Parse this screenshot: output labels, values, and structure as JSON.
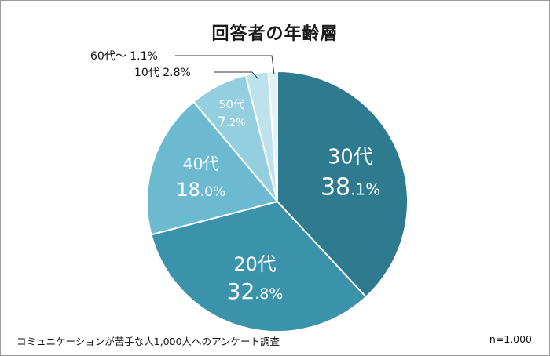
{
  "chart_data": {
    "type": "pie",
    "title": "回答者の年齢層",
    "start": "12 o'clock, clockwise",
    "slices": [
      {
        "label": "30代",
        "value": 38.1,
        "int": "38",
        "dec": ".1%",
        "color": "#2e7a8e"
      },
      {
        "label": "20代",
        "value": 32.8,
        "int": "32",
        "dec": ".8%",
        "color": "#3a93ab"
      },
      {
        "label": "40代",
        "value": 18.0,
        "int": "18",
        "dec": ".0%",
        "color": "#6cbad0"
      },
      {
        "label": "50代",
        "value": 7.2,
        "int": "7",
        "dec": ".2%",
        "color": "#94cfdf"
      },
      {
        "label": "10代",
        "value": 2.8,
        "text": "10代 2.8%",
        "color": "#bde2ec"
      },
      {
        "label": "60代～",
        "value": 1.1,
        "text": "60代～ 1.1%",
        "color": "#e2f2f7"
      }
    ]
  },
  "footer": {
    "source": "コミュニケーションが苦手な人1,000人へのアンケート調査",
    "sample": "n=1,000"
  }
}
